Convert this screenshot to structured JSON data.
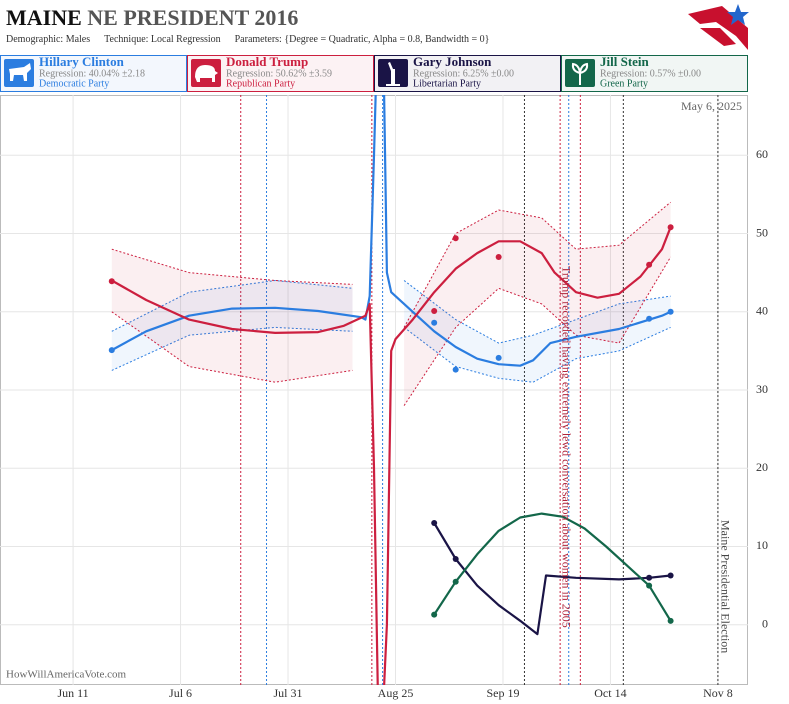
{
  "chart_data": {
    "type": "line",
    "title": "MAINE",
    "title_rest": "NE PRESIDENT 2016",
    "subtitle": [
      "Demographic: Males",
      "Technique: Local Regression",
      "Parameters: {Degree = Quadratic, Alpha = 0.8, Bandwidth = 0}"
    ],
    "date_stamp": "May 6, 2025",
    "watermark": "HowWillAmericaVote.com",
    "xlim": [
      146,
      320
    ],
    "ylim": [
      -7.7,
      67.7
    ],
    "xticks": [
      {
        "value": 163,
        "label": "Jun 11"
      },
      {
        "value": 188,
        "label": "Jul 6"
      },
      {
        "value": 213,
        "label": "Jul 31"
      },
      {
        "value": 238,
        "label": "Aug 25"
      },
      {
        "value": 263,
        "label": "Sep 19"
      },
      {
        "value": 288,
        "label": "Oct 14"
      },
      {
        "value": 313,
        "label": "Nov 8"
      }
    ],
    "yticks": [
      0,
      10,
      20,
      30,
      40,
      50,
      60
    ],
    "grid": true,
    "series": [
      {
        "name": "Hillary Clinton",
        "color": "#2b7de0",
        "regression": "Regression: 40.04% ±2.18",
        "party": "Democratic Party",
        "x": [
          172,
          247,
          252,
          262,
          297,
          302
        ],
        "values": [
          35.1,
          38.6,
          32.6,
          34.1,
          39.1,
          40.0
        ],
        "trend_x": [
          172,
          180,
          190,
          200,
          210,
          220,
          230,
          231,
          232,
          233,
          234,
          235,
          236,
          237,
          242,
          247,
          252,
          257,
          262,
          267,
          270,
          274,
          280,
          290,
          300,
          302
        ],
        "trend": [
          35.1,
          37.5,
          39.5,
          40.4,
          40.5,
          40.1,
          39.3,
          39,
          42,
          60,
          80,
          80,
          45,
          42.5,
          40,
          37.5,
          35.5,
          34,
          33.3,
          33.1,
          33.8,
          36,
          36.8,
          37.8,
          39.5,
          40
        ],
        "band_x": [
          172,
          190,
          210,
          228,
          235,
          240,
          252,
          262,
          270,
          280,
          290,
          302
        ],
        "band_lower": [
          32.5,
          37,
          38,
          37.5,
          null,
          38,
          33,
          31.5,
          31,
          34,
          35,
          38
        ],
        "band_upper": [
          37.5,
          42.5,
          44,
          43,
          null,
          44,
          39,
          36,
          37,
          39,
          41,
          42
        ]
      },
      {
        "name": "Donald Trump",
        "color": "#cc1f3f",
        "regression": "Regression: 50.62% ±3.59",
        "party": "Republican Party",
        "x": [
          172,
          247,
          252,
          262,
          297,
          302
        ],
        "values": [
          43.9,
          40.1,
          49.4,
          47.0,
          46.0,
          50.8
        ],
        "trend_x": [
          172,
          180,
          190,
          200,
          210,
          220,
          226,
          231,
          232,
          233,
          234,
          235,
          236,
          237,
          238,
          242,
          247,
          252,
          257,
          262,
          267,
          272,
          275,
          280,
          285,
          290,
          295,
          300,
          302
        ],
        "trend": [
          44.0,
          41.5,
          39.0,
          37.8,
          37.3,
          37.4,
          38.2,
          39.5,
          41,
          20,
          -12,
          -12,
          0,
          35,
          36.5,
          39,
          42.5,
          45.5,
          47.5,
          49,
          49,
          47.5,
          45,
          42.5,
          41.8,
          42.3,
          44.5,
          48,
          50.8
        ],
        "band_x": [
          172,
          190,
          210,
          228,
          235,
          240,
          252,
          262,
          272,
          280,
          290,
          302
        ],
        "band_lower": [
          40,
          33,
          31,
          32.5,
          null,
          28,
          38,
          43,
          41,
          37,
          36,
          47
        ],
        "band_upper": [
          48,
          45,
          44,
          43.5,
          null,
          38,
          50,
          53,
          52,
          48,
          48.5,
          54
        ]
      },
      {
        "name": "Gary Johnson",
        "color": "#1a1446",
        "regression": "Regression: 6.25% ±0.00",
        "party": "Libertarian Party",
        "x": [
          247,
          252,
          297,
          302
        ],
        "values": [
          13.0,
          8.4,
          6.0,
          6.3
        ],
        "trend_x": [
          247,
          252,
          257,
          262,
          267,
          271,
          273,
          280,
          290,
          297,
          302
        ],
        "trend": [
          13,
          8.4,
          5,
          2.5,
          0.5,
          -1.2,
          6.3,
          6,
          5.8,
          6,
          6.3
        ]
      },
      {
        "name": "Jill Stein",
        "color": "#13674a",
        "regression": "Regression: 0.57% ±0.00",
        "party": "Green Party",
        "x": [
          247,
          252,
          297,
          302
        ],
        "values": [
          1.3,
          5.5,
          5.0,
          0.5
        ],
        "trend_x": [
          247,
          252,
          257,
          262,
          267,
          272,
          277,
          282,
          287,
          292,
          297,
          302
        ],
        "trend": [
          1.3,
          5.5,
          9,
          12,
          13.7,
          14.2,
          13.8,
          12.3,
          10,
          7.5,
          5,
          0.5
        ]
      }
    ],
    "events": [
      {
        "x": 202,
        "color": "#cc1f3f"
      },
      {
        "x": 232.5,
        "color": "#cc1f3f"
      },
      {
        "x": 276.3,
        "color": "#cc1f3f"
      },
      {
        "x": 281,
        "color": "#cc1f3f"
      },
      {
        "x": 208,
        "color": "#2b7de0"
      },
      {
        "x": 235,
        "color": "#2b7de0"
      },
      {
        "x": 278.3,
        "color": "#2b7de0"
      },
      {
        "x": 268,
        "color": "#333333"
      },
      {
        "x": 291,
        "color": "#333333"
      },
      {
        "x": 313,
        "color": "#333333"
      }
    ],
    "annotations": [
      {
        "x": 277.5,
        "text": "Trump recorded having extremely lewd conversation about women in 2005",
        "color": "#b0243b"
      },
      {
        "x": 314.5,
        "text": "Maine Presidential Election",
        "color": "#444444"
      }
    ]
  }
}
